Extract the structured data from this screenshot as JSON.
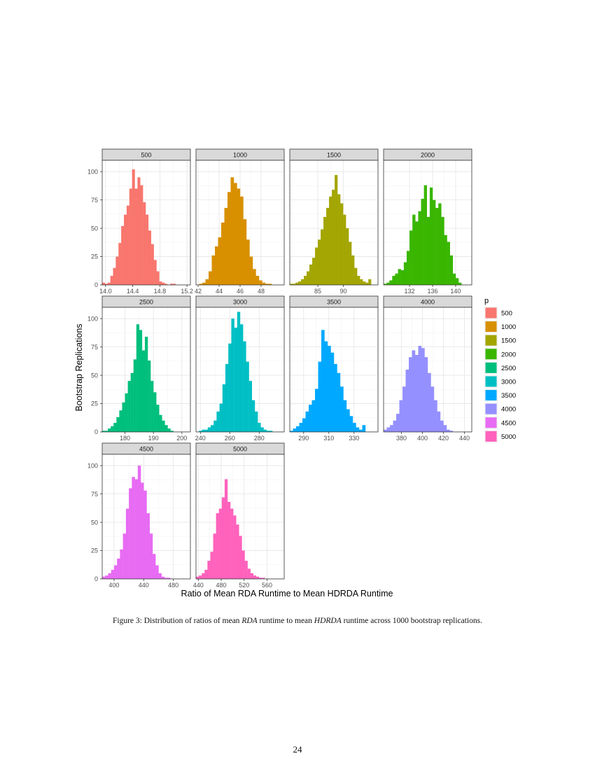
{
  "figure": {
    "caption_prefix": "Figure 3: Distribution of ratios of mean ",
    "caption_em1": "RDA",
    "caption_mid": " runtime to mean ",
    "caption_em2": "HDRDA",
    "caption_suffix": " runtime across 1000 bootstrap replications.",
    "page_number": "24"
  },
  "chart_data": {
    "type": "bar",
    "xlabel": "Ratio of Mean RDA Runtime to Mean HDRDA Runtime",
    "ylabel": "Bootstrap Replications",
    "ylim": [
      0,
      110
    ],
    "y_ticks": [
      0,
      25,
      50,
      75,
      100
    ],
    "grid": true,
    "legend": {
      "title": "p",
      "position": "right"
    },
    "panels": [
      {
        "name": "500",
        "color": "#F8766D",
        "xlim": [
          13.95,
          15.25
        ],
        "x_ticks": [
          14.0,
          14.4,
          14.8,
          15.2
        ],
        "x_tick_labels": [
          "14.0",
          "14.4",
          "14.8",
          "15.2"
        ],
        "bin_start": 13.95,
        "bin_width": 0.04,
        "counts": [
          2,
          1,
          2,
          8,
          15,
          25,
          37,
          52,
          62,
          70,
          85,
          102,
          85,
          95,
          88,
          73,
          62,
          48,
          36,
          22,
          12,
          3,
          2,
          1,
          0,
          1,
          1
        ]
      },
      {
        "name": "1000",
        "color": "#D89000",
        "xlim": [
          41.8,
          50.2
        ],
        "x_ticks": [
          42,
          44,
          46,
          48
        ],
        "x_tick_labels": [
          "42",
          "44",
          "46",
          "48"
        ],
        "bin_start": 41.8,
        "bin_width": 0.3,
        "counts": [
          0,
          1,
          2,
          5,
          12,
          26,
          34,
          42,
          55,
          68,
          82,
          95,
          90,
          85,
          78,
          58,
          40,
          25,
          14,
          8,
          4,
          2,
          1,
          1
        ]
      },
      {
        "name": "1500",
        "color": "#A3A500",
        "xlim": [
          79.5,
          96.8
        ],
        "x_ticks": [
          85,
          90
        ],
        "x_tick_labels": [
          "85",
          "90"
        ],
        "bin_start": 79.5,
        "bin_width": 0.55,
        "counts": [
          1,
          1,
          2,
          3,
          5,
          8,
          12,
          18,
          24,
          33,
          40,
          49,
          60,
          68,
          78,
          84,
          97,
          80,
          72,
          62,
          50,
          38,
          26,
          15,
          8,
          5,
          3,
          2,
          5
        ]
      },
      {
        "name": "2000",
        "color": "#39B600",
        "xlim": [
          127.5,
          142.8
        ],
        "x_ticks": [
          132,
          136,
          140
        ],
        "x_tick_labels": [
          "132",
          "136",
          "140"
        ],
        "bin_start": 127.5,
        "bin_width": 0.5,
        "counts": [
          1,
          2,
          4,
          8,
          10,
          14,
          13,
          20,
          30,
          48,
          62,
          56,
          65,
          76,
          88,
          60,
          86,
          75,
          68,
          72,
          60,
          44,
          38,
          26,
          10,
          6,
          2
        ]
      },
      {
        "name": "2500",
        "color": "#00BF7D",
        "xlim": [
          172,
          203
        ],
        "x_ticks": [
          180,
          190,
          200
        ],
        "x_tick_labels": [
          "180",
          "190",
          "200"
        ],
        "bin_start": 172,
        "bin_width": 1.0,
        "counts": [
          1,
          1,
          3,
          5,
          8,
          13,
          19,
          26,
          34,
          45,
          52,
          64,
          95,
          90,
          72,
          84,
          63,
          45,
          35,
          24,
          15,
          10,
          6,
          3,
          1
        ]
      },
      {
        "name": "3000",
        "color": "#00BFC4",
        "xlim": [
          237,
          297
        ],
        "x_ticks": [
          240,
          260,
          280
        ],
        "x_tick_labels": [
          "240",
          "260",
          "280"
        ],
        "bin_start": 237,
        "bin_width": 2.0,
        "counts": [
          0,
          1,
          2,
          2,
          4,
          6,
          10,
          18,
          25,
          42,
          60,
          78,
          100,
          92,
          106,
          95,
          80,
          62,
          45,
          28,
          18,
          8,
          4,
          2,
          1,
          1
        ]
      },
      {
        "name": "3500",
        "color": "#00A9FF",
        "xlim": [
          279,
          349
        ],
        "x_ticks": [
          290,
          310,
          330
        ],
        "x_tick_labels": [
          "290",
          "310",
          "330"
        ],
        "bin_start": 279,
        "bin_width": 2.5,
        "counts": [
          1,
          3,
          5,
          8,
          12,
          18,
          24,
          28,
          38,
          62,
          90,
          80,
          76,
          70,
          60,
          52,
          40,
          28,
          20,
          14,
          8,
          4,
          2,
          6
        ]
      },
      {
        "name": "4000",
        "color": "#9590FF",
        "xlim": [
          363,
          447
        ],
        "x_ticks": [
          380,
          400,
          420,
          440
        ],
        "x_tick_labels": [
          "380",
          "400",
          "420",
          "440"
        ],
        "bin_start": 363,
        "bin_width": 3.0,
        "counts": [
          2,
          4,
          6,
          10,
          16,
          28,
          40,
          55,
          66,
          72,
          68,
          76,
          74,
          66,
          52,
          40,
          28,
          18,
          10,
          6,
          2,
          1
        ]
      },
      {
        "name": "4500",
        "color": "#E76BF3",
        "xlim": [
          384,
          503
        ],
        "x_ticks": [
          400,
          440,
          480
        ],
        "x_tick_labels": [
          "400",
          "440",
          "480"
        ],
        "bin_start": 384,
        "bin_width": 4.0,
        "counts": [
          2,
          3,
          5,
          8,
          12,
          18,
          26,
          40,
          62,
          80,
          90,
          88,
          100,
          85,
          78,
          58,
          40,
          22,
          12,
          5,
          2,
          1,
          1
        ]
      },
      {
        "name": "5000",
        "color": "#FF62BC",
        "xlim": [
          436,
          590
        ],
        "x_ticks": [
          440,
          480,
          520,
          560
        ],
        "x_tick_labels": [
          "440",
          "480",
          "520",
          "560"
        ],
        "bin_start": 436,
        "bin_width": 5.0,
        "counts": [
          2,
          3,
          5,
          8,
          16,
          24,
          40,
          58,
          62,
          72,
          88,
          68,
          62,
          56,
          48,
          38,
          25,
          16,
          9,
          5,
          3,
          2,
          1,
          1
        ]
      }
    ]
  }
}
